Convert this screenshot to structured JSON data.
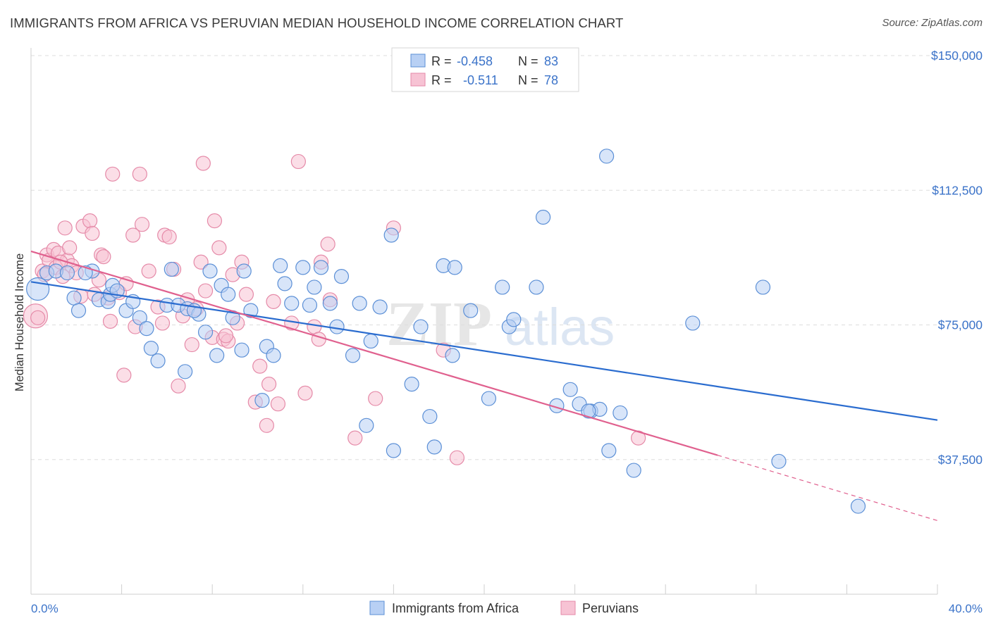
{
  "title": "IMMIGRANTS FROM AFRICA VS PERUVIAN MEDIAN HOUSEHOLD INCOME CORRELATION CHART",
  "source": "Source: ZipAtlas.com",
  "watermark": {
    "zip": "ZIP",
    "atlas": "atlas"
  },
  "colors": {
    "blue_fill": "#b8d0f4",
    "blue_stroke": "#5b8fd6",
    "blue_line": "#2a6ccf",
    "pink_fill": "#f7c3d4",
    "pink_stroke": "#e58aa8",
    "pink_line": "#e0608e",
    "value_text": "#3b73c9",
    "grid": "#dddddd"
  },
  "legend": {
    "rows": [
      {
        "r_label": "R =",
        "r_value": "-0.458",
        "n_label": "N =",
        "n_value": "83"
      },
      {
        "r_label": "R =",
        "r_value": "-0.511",
        "n_label": "N =",
        "n_value": "78"
      }
    ]
  },
  "chart_data": {
    "type": "scatter",
    "title": "IMMIGRANTS FROM AFRICA VS PERUVIAN MEDIAN HOUSEHOLD INCOME CORRELATION CHART",
    "xlabel": "",
    "ylabel": "Median Household Income",
    "xlim": [
      0,
      40
    ],
    "ylim": [
      0,
      150000
    ],
    "x_tick_labels": [
      "0.0%",
      "40.0%"
    ],
    "y_tick_labels": [
      "$37,500",
      "$75,000",
      "$112,500",
      "$150,000"
    ],
    "y_ticks": [
      37500,
      75000,
      112500,
      150000
    ],
    "grid": true,
    "legend_position": "bottom",
    "series": [
      {
        "name": "Immigrants from Africa",
        "r": -0.458,
        "n": 83,
        "trend": {
          "x": [
            0,
            40
          ],
          "y": [
            87000,
            48500
          ]
        },
        "points": [
          [
            0.3,
            85000
          ],
          [
            0.7,
            89500
          ],
          [
            1.1,
            90000
          ],
          [
            1.6,
            89500
          ],
          [
            1.9,
            82500
          ],
          [
            2.1,
            79000
          ],
          [
            2.7,
            90000
          ],
          [
            2.4,
            89500
          ],
          [
            3.0,
            82000
          ],
          [
            3.4,
            81500
          ],
          [
            3.5,
            83500
          ],
          [
            3.6,
            86000
          ],
          [
            3.8,
            84500
          ],
          [
            4.2,
            79000
          ],
          [
            4.5,
            81500
          ],
          [
            4.8,
            77000
          ],
          [
            5.1,
            74000
          ],
          [
            5.3,
            68500
          ],
          [
            5.6,
            65000
          ],
          [
            6.0,
            80500
          ],
          [
            6.2,
            90500
          ],
          [
            6.5,
            80500
          ],
          [
            6.8,
            62000
          ],
          [
            6.9,
            79500
          ],
          [
            7.4,
            78000
          ],
          [
            7.7,
            73000
          ],
          [
            7.9,
            90000
          ],
          [
            8.2,
            66500
          ],
          [
            8.4,
            86000
          ],
          [
            8.7,
            83500
          ],
          [
            8.9,
            77000
          ],
          [
            9.3,
            68000
          ],
          [
            9.4,
            90000
          ],
          [
            9.7,
            79000
          ],
          [
            10.2,
            54000
          ],
          [
            10.4,
            69000
          ],
          [
            10.7,
            66500
          ],
          [
            11.0,
            91500
          ],
          [
            11.2,
            86500
          ],
          [
            11.5,
            81000
          ],
          [
            12.0,
            91000
          ],
          [
            12.3,
            80500
          ],
          [
            12.5,
            85500
          ],
          [
            12.8,
            91000
          ],
          [
            13.2,
            81000
          ],
          [
            13.5,
            74500
          ],
          [
            13.7,
            88500
          ],
          [
            14.2,
            66500
          ],
          [
            14.5,
            81000
          ],
          [
            14.8,
            47000
          ],
          [
            15.0,
            70500
          ],
          [
            15.4,
            80000
          ],
          [
            15.9,
            100000
          ],
          [
            16.0,
            40000
          ],
          [
            16.8,
            58500
          ],
          [
            17.2,
            74500
          ],
          [
            17.6,
            49500
          ],
          [
            17.8,
            41000
          ],
          [
            18.2,
            91500
          ],
          [
            18.6,
            66500
          ],
          [
            18.7,
            91000
          ],
          [
            19.4,
            79000
          ],
          [
            20.2,
            54500
          ],
          [
            20.8,
            85500
          ],
          [
            21.1,
            74500
          ],
          [
            21.3,
            76500
          ],
          [
            22.3,
            85500
          ],
          [
            22.6,
            105000
          ],
          [
            23.2,
            52500
          ],
          [
            23.8,
            57000
          ],
          [
            24.2,
            53000
          ],
          [
            24.7,
            51000
          ],
          [
            25.1,
            51500
          ],
          [
            25.4,
            122000
          ],
          [
            25.5,
            40000
          ],
          [
            26.0,
            50500
          ],
          [
            26.6,
            34500
          ],
          [
            29.2,
            75500
          ],
          [
            32.3,
            85500
          ],
          [
            33.0,
            37000
          ],
          [
            36.5,
            24500
          ],
          [
            24.6,
            51000
          ],
          [
            7.2,
            79000
          ]
        ]
      },
      {
        "name": "Peruvians",
        "r": -0.511,
        "n": 78,
        "trend": {
          "x": [
            0,
            30.3
          ],
          "y": [
            95500,
            38700
          ]
        },
        "trend_dashed": {
          "x": [
            30.3,
            40
          ],
          "y": [
            38700,
            20500
          ]
        },
        "points": [
          [
            0.2,
            77500
          ],
          [
            0.3,
            77000
          ],
          [
            0.5,
            90000
          ],
          [
            0.6,
            89000
          ],
          [
            0.7,
            94500
          ],
          [
            0.8,
            93000
          ],
          [
            1.0,
            96000
          ],
          [
            1.1,
            91000
          ],
          [
            1.2,
            95000
          ],
          [
            1.4,
            88500
          ],
          [
            1.5,
            102000
          ],
          [
            1.6,
            93000
          ],
          [
            1.7,
            96500
          ],
          [
            1.8,
            91500
          ],
          [
            2.0,
            89500
          ],
          [
            2.2,
            83000
          ],
          [
            2.3,
            102500
          ],
          [
            2.6,
            104000
          ],
          [
            2.7,
            100500
          ],
          [
            2.8,
            83500
          ],
          [
            3.0,
            87500
          ],
          [
            3.1,
            94500
          ],
          [
            3.2,
            94000
          ],
          [
            3.4,
            82500
          ],
          [
            3.5,
            76000
          ],
          [
            3.6,
            117000
          ],
          [
            3.9,
            84000
          ],
          [
            4.1,
            61000
          ],
          [
            4.2,
            86500
          ],
          [
            4.5,
            100000
          ],
          [
            4.6,
            74500
          ],
          [
            4.8,
            117000
          ],
          [
            4.9,
            103000
          ],
          [
            5.2,
            90000
          ],
          [
            5.6,
            80000
          ],
          [
            5.8,
            75500
          ],
          [
            5.9,
            100000
          ],
          [
            6.1,
            99500
          ],
          [
            6.3,
            90500
          ],
          [
            6.5,
            58000
          ],
          [
            6.7,
            77500
          ],
          [
            6.9,
            82000
          ],
          [
            7.1,
            69500
          ],
          [
            7.3,
            79500
          ],
          [
            7.5,
            92500
          ],
          [
            7.6,
            120000
          ],
          [
            7.7,
            84500
          ],
          [
            8.0,
            71500
          ],
          [
            8.1,
            104000
          ],
          [
            8.3,
            96500
          ],
          [
            8.5,
            71000
          ],
          [
            8.7,
            70500
          ],
          [
            8.9,
            89000
          ],
          [
            9.1,
            75500
          ],
          [
            9.3,
            92500
          ],
          [
            9.5,
            83500
          ],
          [
            9.9,
            53500
          ],
          [
            10.1,
            63500
          ],
          [
            10.4,
            47000
          ],
          [
            10.5,
            58500
          ],
          [
            10.7,
            81500
          ],
          [
            10.9,
            53000
          ],
          [
            11.5,
            75500
          ],
          [
            11.8,
            120500
          ],
          [
            12.1,
            56000
          ],
          [
            12.5,
            74500
          ],
          [
            12.7,
            71000
          ],
          [
            12.8,
            92500
          ],
          [
            13.1,
            97500
          ],
          [
            13.2,
            82000
          ],
          [
            14.3,
            43500
          ],
          [
            15.2,
            54500
          ],
          [
            16.0,
            102000
          ],
          [
            18.2,
            68000
          ],
          [
            18.8,
            38000
          ],
          [
            26.8,
            43500
          ],
          [
            8.6,
            72000
          ],
          [
            1.3,
            92500
          ]
        ]
      }
    ]
  }
}
